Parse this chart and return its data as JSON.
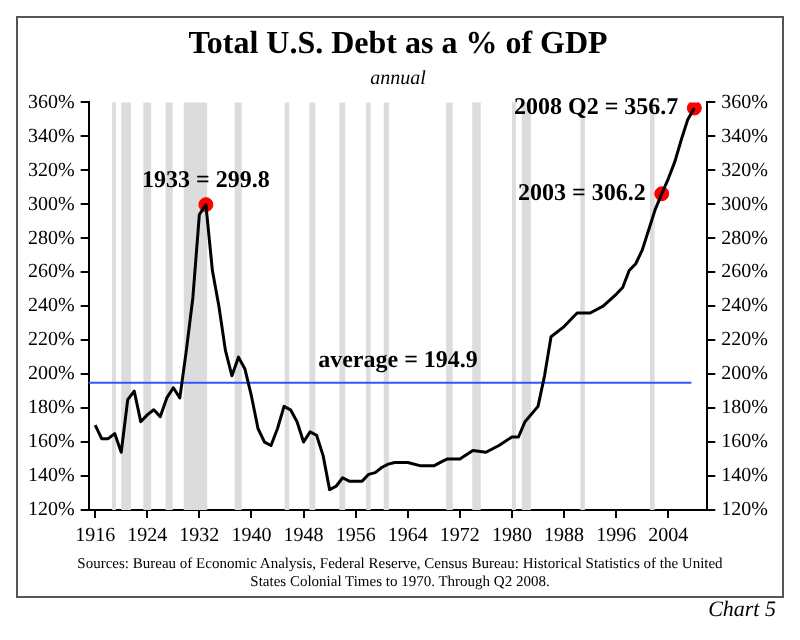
{
  "chart_data": {
    "type": "line",
    "title": "Total U.S. Debt as a % of GDP",
    "subtitle": "annual",
    "series": [
      {
        "color": "#000000",
        "marker": "none",
        "x": [
          1916,
          1917,
          1918,
          1919,
          1920,
          1921,
          1922,
          1923,
          1924,
          1925,
          1926,
          1927,
          1928,
          1929,
          1930,
          1931,
          1932,
          1933,
          1934,
          1935,
          1936,
          1937,
          1938,
          1939,
          1940,
          1941,
          1942,
          1943,
          1944,
          1945,
          1946,
          1947,
          1948,
          1949,
          1950,
          1951,
          1952,
          1953,
          1954,
          1955,
          1956,
          1957,
          1958,
          1959,
          1960,
          1961,
          1962,
          1964,
          1966,
          1968,
          1969,
          1970,
          1972,
          1974,
          1976,
          1978,
          1980,
          1981,
          1982,
          1984,
          1985,
          1986,
          1988,
          1990,
          1992,
          1994,
          1996,
          1997,
          1998,
          1999,
          2000,
          2001,
          2002,
          2003,
          2004,
          2005,
          2006,
          2007,
          2008
        ],
        "values": [
          170,
          162,
          162,
          165,
          154,
          185,
          190,
          172,
          176,
          179,
          175,
          186,
          192,
          186,
          214,
          245,
          294,
          299.8,
          261,
          240,
          214,
          199,
          210,
          203,
          187,
          168,
          160,
          158,
          168,
          181,
          179,
          172,
          160,
          166,
          164,
          152,
          132,
          134,
          139,
          137,
          137,
          137,
          141,
          142,
          145,
          147,
          148,
          148,
          146,
          146,
          148,
          150,
          150,
          155,
          154,
          158,
          163,
          163,
          172,
          181,
          199,
          222,
          228,
          236,
          236,
          240,
          247,
          251,
          261,
          265,
          273,
          285,
          297,
          306.2,
          315,
          325,
          338,
          350,
          356.7
        ]
      },
      {
        "type": "scatter",
        "color": "#ff0000",
        "marker": "circle",
        "x": [
          1933,
          2003,
          2008
        ],
        "values": [
          299.8,
          306.2,
          356.7
        ]
      }
    ],
    "xlim": [
      1915,
      2010
    ],
    "xticks": [
      1916,
      1924,
      1932,
      1940,
      1948,
      1956,
      1964,
      1972,
      1980,
      1988,
      1996,
      2004
    ],
    "ylim": [
      120,
      360
    ],
    "yticks": [
      {
        "value": 120,
        "label": "120%"
      },
      {
        "value": 140,
        "label": "140%"
      },
      {
        "value": 160,
        "label": "160%"
      },
      {
        "value": 180,
        "label": "180%"
      },
      {
        "value": 200,
        "label": "200%"
      },
      {
        "value": 220,
        "label": "220%"
      },
      {
        "value": 240,
        "label": "240%"
      },
      {
        "value": 260,
        "label": "260%"
      },
      {
        "value": 280,
        "label": "280%"
      },
      {
        "value": 300,
        "label": "300%"
      },
      {
        "value": 320,
        "label": "320%"
      },
      {
        "value": 340,
        "label": "340%"
      },
      {
        "value": 360,
        "label": "360%"
      }
    ],
    "y2lim": [
      120,
      360
    ],
    "y2ticks": [
      {
        "value": 120,
        "label": "120%"
      },
      {
        "value": 140,
        "label": "140%"
      },
      {
        "value": 160,
        "label": "160%"
      },
      {
        "value": 180,
        "label": "180%"
      },
      {
        "value": 200,
        "label": "200%"
      },
      {
        "value": 220,
        "label": "220%"
      },
      {
        "value": 240,
        "label": "240%"
      },
      {
        "value": 260,
        "label": "260%"
      },
      {
        "value": 280,
        "label": "280%"
      },
      {
        "value": 300,
        "label": "300%"
      },
      {
        "value": 320,
        "label": "320%"
      },
      {
        "value": 340,
        "label": "340%"
      },
      {
        "value": 360,
        "label": "360%"
      }
    ],
    "ref_lines": [
      {
        "axis": "y",
        "value": 194.9,
        "label": "average = 194.9",
        "color": "#3355ff"
      }
    ],
    "bands": [
      {
        "axis": "x",
        "from": 1918.6,
        "to": 1919.2,
        "color": "#dcdcdc"
      },
      {
        "axis": "x",
        "from": 1920.0,
        "to": 1921.5,
        "color": "#dcdcdc"
      },
      {
        "axis": "x",
        "from": 1923.4,
        "to": 1924.6,
        "color": "#dcdcdc"
      },
      {
        "axis": "x",
        "from": 1926.8,
        "to": 1927.9,
        "color": "#dcdcdc"
      },
      {
        "axis": "x",
        "from": 1929.6,
        "to": 1933.2,
        "color": "#dcdcdc"
      },
      {
        "axis": "x",
        "from": 1937.4,
        "to": 1938.5,
        "color": "#dcdcdc"
      },
      {
        "axis": "x",
        "from": 1945.1,
        "to": 1945.8,
        "color": "#dcdcdc"
      },
      {
        "axis": "x",
        "from": 1948.9,
        "to": 1949.8,
        "color": "#dcdcdc"
      },
      {
        "axis": "x",
        "from": 1953.5,
        "to": 1954.4,
        "color": "#dcdcdc"
      },
      {
        "axis": "x",
        "from": 1957.6,
        "to": 1958.3,
        "color": "#dcdcdc"
      },
      {
        "axis": "x",
        "from": 1960.3,
        "to": 1961.1,
        "color": "#dcdcdc"
      },
      {
        "axis": "x",
        "from": 1969.9,
        "to": 1970.9,
        "color": "#dcdcdc"
      },
      {
        "axis": "x",
        "from": 1973.9,
        "to": 1975.2,
        "color": "#dcdcdc"
      },
      {
        "axis": "x",
        "from": 1980.0,
        "to": 1980.6,
        "color": "#dcdcdc"
      },
      {
        "axis": "x",
        "from": 1981.5,
        "to": 1982.9,
        "color": "#dcdcdc"
      },
      {
        "axis": "x",
        "from": 1990.5,
        "to": 1991.2,
        "color": "#dcdcdc"
      },
      {
        "axis": "x",
        "from": 2001.2,
        "to": 2001.9,
        "color": "#dcdcdc"
      }
    ],
    "annotations": [
      {
        "text": "1933 = 299.8",
        "x": 1933,
        "y": 299.8
      },
      {
        "text": "2003 = 306.2",
        "x": 2003,
        "y": 306.2
      },
      {
        "text": "2008 Q2 = 356.7",
        "x": 2008,
        "y": 356.7
      },
      "Sources: Bureau of Economic Analysis, Federal Reserve, Census Bureau: Historical Statistics of the United States Colonial Times to 1970.   Through Q2 2008.",
      "Chart 5"
    ],
    "grid": false,
    "legend": false
  }
}
